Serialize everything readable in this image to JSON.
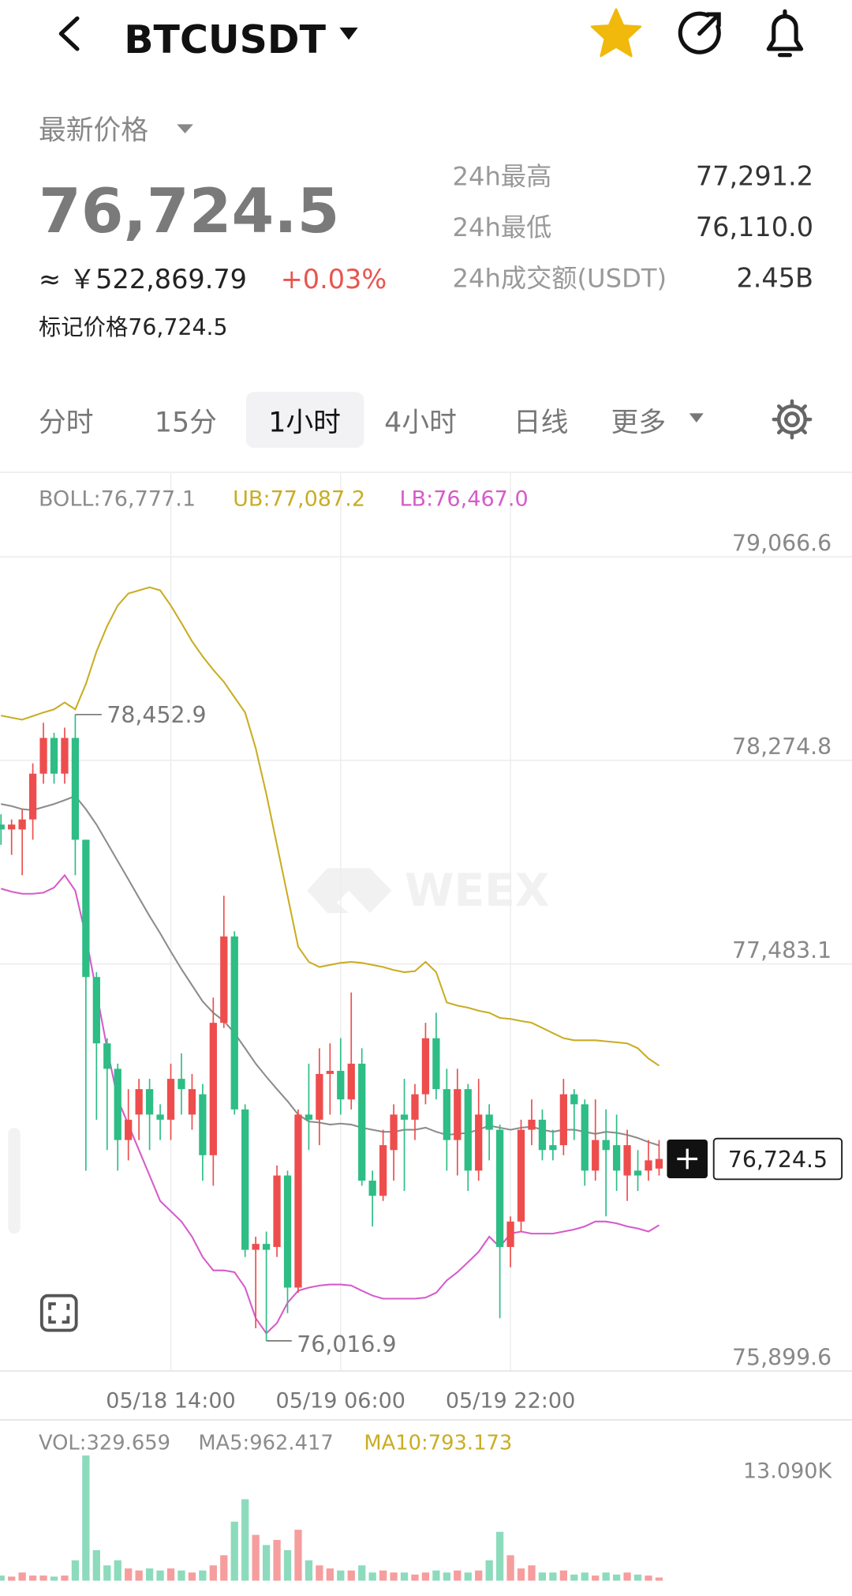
{
  "header": {
    "symbol": "BTCUSDT"
  },
  "summary": {
    "price_label": "最新价格",
    "last_price": "76,724.5",
    "cny_price": "≈ ￥522,869.79",
    "change": "+0.03%",
    "mark_price": "标记价格76,724.5",
    "stats": [
      {
        "label": "24h最高",
        "value": "77,291.2"
      },
      {
        "label": "24h最低",
        "value": "76,110.0"
      },
      {
        "label": "24h成交额(USDT)",
        "value": "2.45B"
      }
    ]
  },
  "tabs": [
    "分时",
    "15分",
    "1小时",
    "4小时",
    "日线",
    "更多"
  ],
  "active_tab": 2,
  "watermark": "WEEX",
  "chart_data": [
    {
      "type": "candlestick",
      "up_color": "#ee4d4d",
      "down_color": "#2dbd85",
      "categories": [
        null,
        null,
        null,
        null,
        null,
        null,
        null,
        null,
        null,
        null,
        null,
        null,
        null,
        null,
        null,
        null,
        "05/18 14:00",
        null,
        null,
        null,
        null,
        null,
        null,
        null,
        null,
        null,
        null,
        null,
        null,
        null,
        null,
        null,
        "05/19 06:00",
        null,
        null,
        null,
        null,
        null,
        null,
        null,
        null,
        null,
        null,
        null,
        null,
        null,
        null,
        null,
        "05/19 22:00",
        null,
        null,
        null,
        null,
        null,
        null,
        null,
        null,
        null,
        null,
        null,
        null,
        null,
        null
      ],
      "candles": [
        [
          78025,
          78065,
          77946,
          78006
        ],
        [
          78006,
          78045,
          77907,
          78025
        ],
        [
          78006,
          78085,
          77828,
          78045
        ],
        [
          78045,
          78263,
          77966,
          78223
        ],
        [
          78223,
          78421,
          78184,
          78362
        ],
        [
          78362,
          78382,
          78184,
          78223
        ],
        [
          78223,
          78402,
          78184,
          78362
        ],
        [
          78362,
          78452.9,
          77828,
          77966
        ],
        [
          77966,
          77966,
          76679,
          77432
        ],
        [
          77432,
          77451,
          76877,
          77174
        ],
        [
          77174,
          77194,
          76759,
          77075
        ],
        [
          77075,
          77095,
          76679,
          76798
        ],
        [
          76798,
          76996,
          76719,
          76877
        ],
        [
          76897,
          77036,
          76798,
          76996
        ],
        [
          76996,
          77036,
          76759,
          76897
        ],
        [
          76897,
          76937,
          76798,
          76877
        ],
        [
          76877,
          77095,
          76798,
          77036
        ],
        [
          77036,
          77135,
          76897,
          76996
        ],
        [
          76897,
          77055,
          76838,
          76996
        ],
        [
          76976,
          77016,
          76640,
          76739
        ],
        [
          76739,
          77352,
          76620,
          77254
        ],
        [
          77254,
          77748,
          77234,
          77590
        ],
        [
          77590,
          77610,
          76897,
          76917
        ],
        [
          76917,
          76937,
          76343,
          76371
        ],
        [
          76371,
          76422,
          76066,
          76394
        ],
        [
          76394,
          76442,
          76016.9,
          76371
        ],
        [
          76382,
          76699,
          76343,
          76660
        ],
        [
          76660,
          76679,
          76125,
          76224
        ],
        [
          76224,
          76917,
          76204,
          76897
        ],
        [
          76897,
          77095,
          76759,
          76877
        ],
        [
          76877,
          77155,
          76778,
          77055
        ],
        [
          77055,
          77174,
          76897,
          77067
        ],
        [
          77067,
          77194,
          76897,
          76956
        ],
        [
          76956,
          77372,
          76917,
          77095
        ],
        [
          77095,
          77155,
          76620,
          76640
        ],
        [
          76640,
          76679,
          76462,
          76581
        ],
        [
          76581,
          76838,
          76561,
          76778
        ],
        [
          76759,
          76937,
          76640,
          76897
        ],
        [
          76897,
          77036,
          76600,
          76877
        ],
        [
          76877,
          77016,
          76798,
          76976
        ],
        [
          76976,
          77254,
          76937,
          77194
        ],
        [
          77194,
          77293,
          76956,
          76996
        ],
        [
          76996,
          77075,
          76679,
          76798
        ],
        [
          76798,
          77075,
          76660,
          76996
        ],
        [
          76996,
          77016,
          76600,
          76679
        ],
        [
          76679,
          77036,
          76640,
          76897
        ],
        [
          76897,
          76937,
          76719,
          76838
        ],
        [
          76838,
          76858,
          76105,
          76382
        ],
        [
          76382,
          76501,
          76303,
          76481
        ],
        [
          76481,
          76877,
          76442,
          76838
        ],
        [
          76838,
          76956,
          76778,
          76877
        ],
        [
          76877,
          76917,
          76719,
          76759
        ],
        [
          76778,
          76838,
          76719,
          76759
        ],
        [
          76778,
          77036,
          76739,
          76976
        ],
        [
          76976,
          76996,
          76798,
          76937
        ],
        [
          76937,
          76956,
          76620,
          76679
        ],
        [
          76679,
          76956,
          76640,
          76798
        ],
        [
          76798,
          76917,
          76501,
          76759
        ],
        [
          76778,
          76897,
          76600,
          76679
        ],
        [
          76660,
          76838,
          76561,
          76778
        ],
        [
          76679,
          76759,
          76600,
          76660
        ],
        [
          76679,
          76798,
          76640,
          76719
        ],
        [
          76687,
          76798,
          76660,
          76724.5
        ]
      ],
      "series": [
        {
          "name": "BOLL:76,777.1",
          "color": "#8c8c8c",
          "values": [
            78105,
            78097,
            78085,
            78081,
            78093,
            78105,
            78120,
            78136,
            78085,
            78025,
            77954,
            77883,
            77812,
            77740,
            77669,
            77602,
            77531,
            77463,
            77400,
            77337,
            77293,
            77261,
            77214,
            77155,
            77095,
            77044,
            76996,
            76949,
            76897,
            76870,
            76866,
            76858,
            76862,
            76858,
            76846,
            76838,
            76830,
            76830,
            76838,
            76838,
            76846,
            76830,
            76818,
            76822,
            76826,
            76838,
            76854,
            76846,
            76838,
            76846,
            76850,
            76838,
            76830,
            76838,
            76838,
            76830,
            76822,
            76830,
            76826,
            76818,
            76806,
            76790,
            76777.1
          ]
        },
        {
          "name": "UB:77,087.2",
          "color": "#c9ad23",
          "values": [
            78449,
            78441,
            78433,
            78447,
            78461,
            78473,
            78500,
            78473,
            78572,
            78698,
            78797,
            78877,
            78924,
            78936,
            78948,
            78936,
            78877,
            78809,
            78738,
            78679,
            78627,
            78580,
            78520,
            78461,
            78322,
            78144,
            77946,
            77748,
            77550,
            77491,
            77471,
            77479,
            77487,
            77491,
            77487,
            77479,
            77471,
            77459,
            77451,
            77455,
            77491,
            77451,
            77333,
            77321,
            77313,
            77301,
            77293,
            77273,
            77269,
            77261,
            77254,
            77234,
            77214,
            77194,
            77186,
            77186,
            77186,
            77182,
            77178,
            77174,
            77155,
            77115,
            77087.2
          ]
        },
        {
          "name": "LB:76,467.0",
          "color": "#d65bc9",
          "values": [
            77776,
            77764,
            77756,
            77756,
            77760,
            77780,
            77828,
            77768,
            77590,
            77372,
            77155,
            76956,
            76858,
            76759,
            76660,
            76561,
            76521,
            76481,
            76422,
            76343,
            76291,
            76291,
            76284,
            76224,
            76105,
            76046,
            76086,
            76165,
            76212,
            76224,
            76232,
            76236,
            76236,
            76232,
            76212,
            76193,
            76181,
            76181,
            76181,
            76181,
            76185,
            76204,
            76252,
            76284,
            76323,
            76363,
            76422,
            76382,
            76434,
            76442,
            76434,
            76434,
            76434,
            76442,
            76450,
            76462,
            76481,
            76481,
            76474,
            76462,
            76454,
            76442,
            76467.0
          ]
        }
      ],
      "ylim": [
        75899.6,
        79391.2
      ],
      "yticks": [
        {
          "value": 79066.6,
          "label": "79,066.6"
        },
        {
          "value": 78274.8,
          "label": "78,274.8"
        },
        {
          "value": 77483.1,
          "label": "77,483.1"
        },
        {
          "value": 75899.6,
          "label": "75,899.6"
        }
      ],
      "grid": true,
      "high_label": "78,452.9",
      "low_label": "76,016.9",
      "last_label": "76,724.5"
    },
    {
      "type": "bar",
      "legend": [
        {
          "name": "VOL:329.659",
          "color": "#8c8c8c"
        },
        {
          "name": "MA5:962.417",
          "color": "#8c8c8c"
        },
        {
          "name": "MA10:793.173",
          "color": "#c9ad23"
        }
      ],
      "values": [
        532,
        426,
        851,
        532,
        532,
        426,
        532,
        2128,
        13090,
        3192,
        1596,
        2128,
        1277,
        1064,
        1277,
        1064,
        1277,
        1064,
        851,
        1064,
        1596,
        2660,
        6171,
        8512,
        4788,
        3724,
        4256,
        3192,
        5320,
        2128,
        1596,
        1277,
        1064,
        1064,
        1596,
        851,
        1064,
        851,
        851,
        638,
        851,
        1064,
        851,
        1064,
        851,
        1064,
        2128,
        5107,
        2660,
        1277,
        1596,
        851,
        851,
        1064,
        638,
        851,
        532,
        851,
        638,
        851,
        638,
        532,
        329.659
      ],
      "ylim": [
        0,
        13090
      ],
      "yticks": [
        {
          "value": 13090,
          "label": "13.090K"
        }
      ]
    }
  ]
}
